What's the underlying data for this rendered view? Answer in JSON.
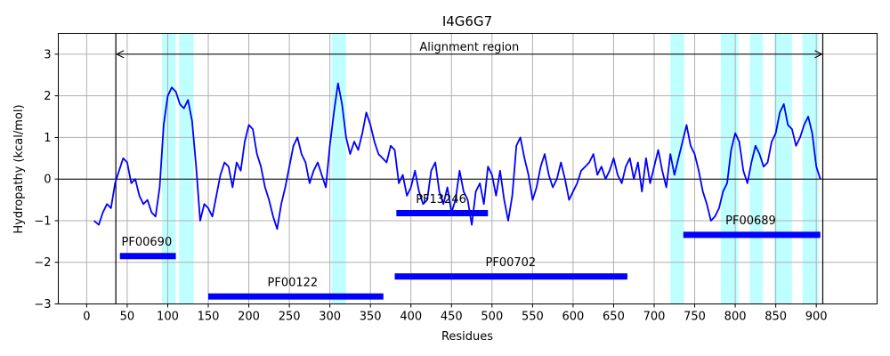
{
  "chart_data": {
    "type": "line",
    "title": "I4G6G7",
    "xlabel": "Residues",
    "ylabel": "Hydropathy (kcal/mol)",
    "xlim": [
      -35,
      975
    ],
    "ylim": [
      -3,
      3.5
    ],
    "xticks": [
      0,
      50,
      100,
      150,
      200,
      250,
      300,
      350,
      400,
      450,
      500,
      550,
      600,
      650,
      700,
      750,
      800,
      850,
      900
    ],
    "yticks": [
      -3,
      -2,
      -1,
      0,
      1,
      2,
      3
    ],
    "grid": true,
    "series": [
      {
        "color": "#0000ff",
        "x": [
          9,
          15,
          20,
          25,
          30,
          35,
          40,
          45,
          50,
          55,
          60,
          65,
          70,
          75,
          80,
          85,
          90,
          95,
          100,
          105,
          110,
          115,
          120,
          125,
          130,
          135,
          140,
          145,
          150,
          155,
          160,
          165,
          170,
          175,
          180,
          185,
          190,
          195,
          200,
          205,
          210,
          215,
          220,
          225,
          230,
          235,
          240,
          245,
          250,
          255,
          260,
          265,
          270,
          275,
          280,
          285,
          290,
          295,
          300,
          305,
          310,
          315,
          320,
          325,
          330,
          335,
          340,
          345,
          350,
          355,
          360,
          365,
          370,
          375,
          380,
          385,
          390,
          395,
          400,
          405,
          410,
          415,
          420,
          425,
          430,
          435,
          440,
          445,
          450,
          455,
          460,
          465,
          470,
          475,
          480,
          485,
          490,
          495,
          500,
          505,
          510,
          515,
          520,
          525,
          530,
          535,
          540,
          545,
          550,
          555,
          560,
          565,
          570,
          575,
          580,
          585,
          590,
          595,
          600,
          605,
          610,
          615,
          620,
          625,
          630,
          635,
          640,
          645,
          650,
          655,
          660,
          665,
          670,
          675,
          680,
          685,
          690,
          695,
          700,
          705,
          710,
          715,
          720,
          725,
          730,
          735,
          740,
          745,
          750,
          755,
          760,
          765,
          770,
          775,
          780,
          785,
          790,
          795,
          800,
          805,
          810,
          815,
          820,
          825,
          830,
          835,
          840,
          845,
          850,
          855,
          860,
          865,
          870,
          875,
          880,
          885,
          890,
          895,
          900,
          905
        ],
        "y": [
          -1.0,
          -1.1,
          -0.8,
          -0.6,
          -0.7,
          -0.1,
          0.2,
          0.5,
          0.4,
          -0.1,
          0.0,
          -0.4,
          -0.6,
          -0.5,
          -0.8,
          -0.9,
          -0.2,
          1.3,
          2.0,
          2.2,
          2.1,
          1.8,
          1.7,
          1.9,
          1.4,
          0.3,
          -1.0,
          -0.6,
          -0.7,
          -0.9,
          -0.4,
          0.1,
          0.4,
          0.3,
          -0.2,
          0.4,
          0.2,
          0.9,
          1.3,
          1.2,
          0.6,
          0.3,
          -0.2,
          -0.5,
          -0.9,
          -1.2,
          -0.6,
          -0.2,
          0.3,
          0.8,
          1.0,
          0.6,
          0.4,
          -0.1,
          0.2,
          0.4,
          0.1,
          -0.2,
          0.8,
          1.6,
          2.3,
          1.8,
          1.0,
          0.6,
          0.9,
          0.7,
          1.1,
          1.6,
          1.3,
          0.9,
          0.6,
          0.5,
          0.4,
          0.8,
          0.7,
          -0.1,
          0.1,
          -0.4,
          -0.2,
          0.2,
          -0.3,
          -0.6,
          -0.5,
          0.2,
          0.4,
          -0.3,
          -0.6,
          -0.2,
          -0.8,
          -0.5,
          0.2,
          -0.3,
          -0.5,
          -1.1,
          -0.3,
          -0.1,
          -0.6,
          0.3,
          0.1,
          -0.4,
          0.2,
          -0.5,
          -1.0,
          -0.4,
          0.8,
          1.0,
          0.5,
          0.1,
          -0.5,
          -0.2,
          0.3,
          0.6,
          0.1,
          -0.2,
          0.0,
          0.4,
          0.0,
          -0.5,
          -0.3,
          -0.1,
          0.2,
          0.3,
          0.4,
          0.6,
          0.1,
          0.3,
          0.0,
          0.2,
          0.5,
          0.1,
          -0.1,
          0.3,
          0.5,
          0.0,
          0.4,
          -0.3,
          0.5,
          -0.1,
          0.3,
          0.7,
          0.2,
          -0.2,
          0.6,
          0.1,
          0.5,
          0.9,
          1.3,
          0.8,
          0.6,
          0.2,
          -0.3,
          -0.6,
          -1.0,
          -0.9,
          -0.7,
          -0.3,
          -0.1,
          0.7,
          1.1,
          0.9,
          0.2,
          -0.1,
          0.4,
          0.8,
          0.6,
          0.3,
          0.4,
          0.9,
          1.1,
          1.6,
          1.8,
          1.3,
          1.2,
          0.8,
          1.0,
          1.3,
          1.5,
          1.1,
          0.3,
          0.0
        ]
      }
    ],
    "highlight_regions": [
      [
        93,
        110
      ],
      [
        114,
        132
      ],
      [
        302,
        320
      ],
      [
        720,
        737
      ],
      [
        782,
        804
      ],
      [
        818,
        834
      ],
      [
        848,
        870
      ],
      [
        883,
        903
      ]
    ],
    "region_color": "#00ffff",
    "vertical_lines": [
      36,
      908
    ],
    "alignment_region": {
      "label": "Alignment region",
      "start": 36,
      "end": 908,
      "y": 3.0
    },
    "domain_color": "#0000ff",
    "domains": [
      {
        "label": "PF00690",
        "start": 41,
        "end": 110,
        "y": -1.85,
        "label_x": 43,
        "label_y": -1.6
      },
      {
        "label": "PF00122",
        "start": 150,
        "end": 366,
        "y": -2.82,
        "label_x": 223,
        "label_y": -2.57
      },
      {
        "label": "PF13246",
        "start": 382,
        "end": 495,
        "y": -0.82,
        "label_x": 406,
        "label_y": -0.57
      },
      {
        "label": "PF00702",
        "start": 380,
        "end": 667,
        "y": -2.34,
        "label_x": 492,
        "label_y": -2.09
      },
      {
        "label": "PF00689",
        "start": 736,
        "end": 905,
        "y": -1.34,
        "label_x": 788,
        "label_y": -1.09
      }
    ]
  }
}
